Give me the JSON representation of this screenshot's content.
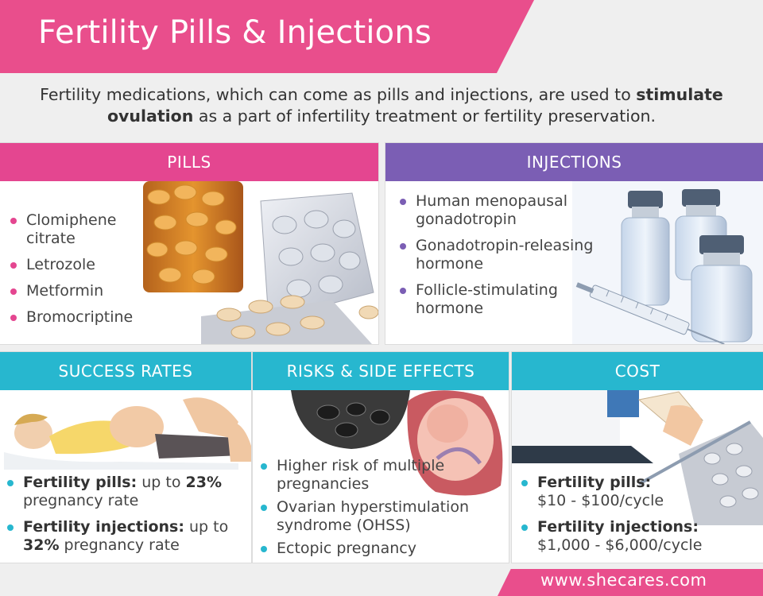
{
  "title": "Fertility Pills & Injections",
  "intro": {
    "line1_pre": "Fertility medications, which can come as pills and injections, are used to ",
    "line1_bold": "stimulate",
    "line2_bold": "ovulation",
    "line2_post": " as a part of infertility treatment or fertility preservation."
  },
  "pills": {
    "heading": "PILLS",
    "items": [
      "Clomiphene citrate",
      "Letrozole",
      "Metformin",
      "Bromocriptine"
    ]
  },
  "injections": {
    "heading": "INJECTIONS",
    "items": [
      "Human menopausal gonadotropin",
      "Gonadotropin-releasing hormone",
      "Follicle-stimulating hormone"
    ]
  },
  "success": {
    "heading": "SUCCESS RATES",
    "items": [
      {
        "label": "Fertility pills:",
        "pre": " up to ",
        "value": "23%",
        "post": " pregnancy rate"
      },
      {
        "label": "Fertility injections:",
        "pre": " up to ",
        "value": "32%",
        "post": " pregnancy rate"
      }
    ]
  },
  "risks": {
    "heading": "RISKS & SIDE EFFECTS",
    "items": [
      "Higher risk of multiple pregnancies",
      "Ovarian hyperstimulation syndrome (OHSS)",
      "Ectopic pregnancy"
    ]
  },
  "cost": {
    "heading": "COST",
    "items": [
      {
        "label": "Fertility pills:",
        "value": "$10 - $100/cycle"
      },
      {
        "label": "Fertility injections:",
        "value": "$1,000 - $6,000/cycle"
      }
    ]
  },
  "footer": {
    "url": "www.shecares.com"
  },
  "colors": {
    "pink": "#e94e8c",
    "magenta": "#e44690",
    "purple": "#7b5eb4",
    "teal": "#27b7cf"
  }
}
